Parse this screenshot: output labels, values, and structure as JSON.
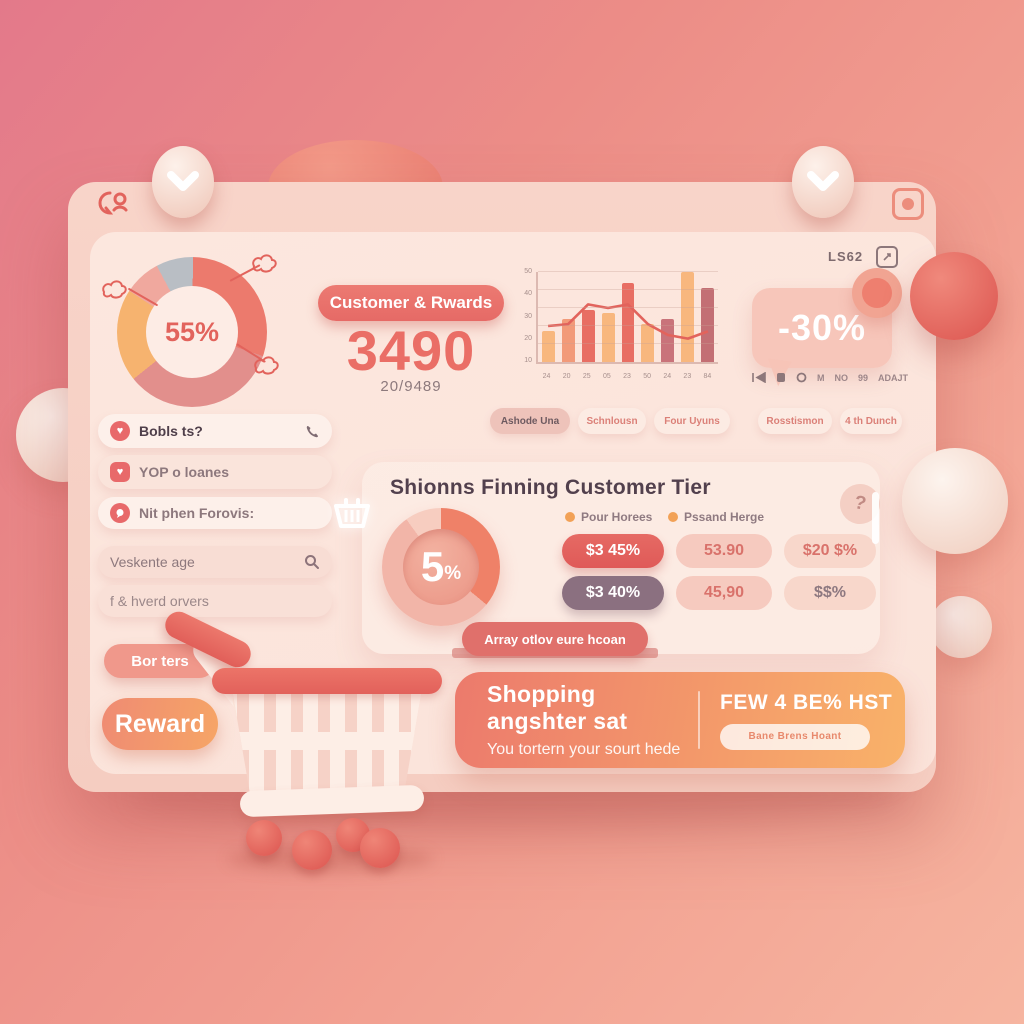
{
  "window": {
    "badge": "LS62",
    "tokens": [
      "M",
      "NO",
      "99",
      "ADAJT"
    ]
  },
  "kpi": {
    "title": "Customer & Rwards",
    "value": "3490",
    "subvalue": "20/9489"
  },
  "bubble": {
    "value": "-30%"
  },
  "chips": [
    {
      "label": "Ashode Una",
      "active": true
    },
    {
      "label": "Schnlousn",
      "active": false
    },
    {
      "label": "Four Uyuns",
      "active": false
    },
    {
      "label": "Rosstismon",
      "active": false
    },
    {
      "label": "4 th Dunch",
      "active": false
    }
  ],
  "sidebar": {
    "items": [
      {
        "label": "Bobls ts?"
      },
      {
        "label": "YOP o loanes"
      },
      {
        "label": "Nit phen Forovis:"
      },
      {
        "label": "Veskente age"
      },
      {
        "label": "f & hverd orvers"
      }
    ]
  },
  "panel": {
    "left_title": "Shionns Finning",
    "donut_value": "5",
    "donut_unit": "%",
    "right_title": "Customer Tier",
    "legend": [
      {
        "label": "Pour Horees"
      },
      {
        "label": "Pssand Herge"
      }
    ],
    "tiers": [
      [
        "$3 45%",
        "53.90",
        "$20 $%"
      ],
      [
        "$3 40%",
        "45,90",
        "$$%"
      ]
    ],
    "cta": "Array otlov eure hcoan"
  },
  "buttons": {
    "borters": "Bor ters",
    "reward": "Reward"
  },
  "banner": {
    "title": "Shopping angshter sat",
    "subtitle": "You tortern your sourt hede",
    "right_title": "FEW 4 BE% HST",
    "button": "Bane Brens Hoant"
  },
  "donut_main_label": "55%",
  "colors": {
    "accent": "#e8696a",
    "orange": "#f2a156",
    "mauve": "#8b7080",
    "card": "#fbe3da"
  },
  "chart_data": [
    {
      "type": "bar",
      "title": "",
      "categories": [
        "24",
        "20",
        "25",
        "05",
        "23",
        "50",
        "24",
        "23",
        "84"
      ],
      "series": [
        {
          "name": "bars",
          "values": [
            17,
            24,
            29,
            27,
            44,
            21,
            24,
            50,
            41
          ]
        },
        {
          "name": "line",
          "values": [
            20,
            21,
            32,
            30,
            32,
            21,
            15,
            13,
            17
          ]
        }
      ],
      "bar_colors": [
        "#f8b77e",
        "#f29a79",
        "#e86e63",
        "#f8b77e",
        "#e86e63",
        "#f8b77e",
        "#c9737a",
        "#f8b77e",
        "#c36f74"
      ],
      "line_color": "#e2635c",
      "yticks": [
        "10",
        "20",
        "30",
        "40",
        "50"
      ],
      "ylim": [
        0,
        50
      ],
      "grid": true
    },
    {
      "type": "pie",
      "title": "loyalty-share-donut",
      "center_label": "55%",
      "start_angle": -28,
      "segments": [
        {
          "name": "gray",
          "value": 8,
          "color": "#b9bec4"
        },
        {
          "name": "coral",
          "value": 30,
          "color": "#ec7a6d"
        },
        {
          "name": "rose",
          "value": 34,
          "color": "#e28f8c"
        },
        {
          "name": "orange",
          "value": 20,
          "color": "#f6b36f"
        },
        {
          "name": "pink",
          "value": 8,
          "color": "#f0a89e"
        }
      ]
    },
    {
      "type": "pie",
      "title": "shionns-finning-donut",
      "center_label": "5%",
      "start_angle": 0,
      "segments": [
        {
          "name": "coral",
          "value": 36,
          "color": "#ef8168"
        },
        {
          "name": "light",
          "value": 54,
          "color": "#f2b5a8"
        },
        {
          "name": "lighter",
          "value": 10,
          "color": "#f7cdc0"
        }
      ]
    }
  ]
}
